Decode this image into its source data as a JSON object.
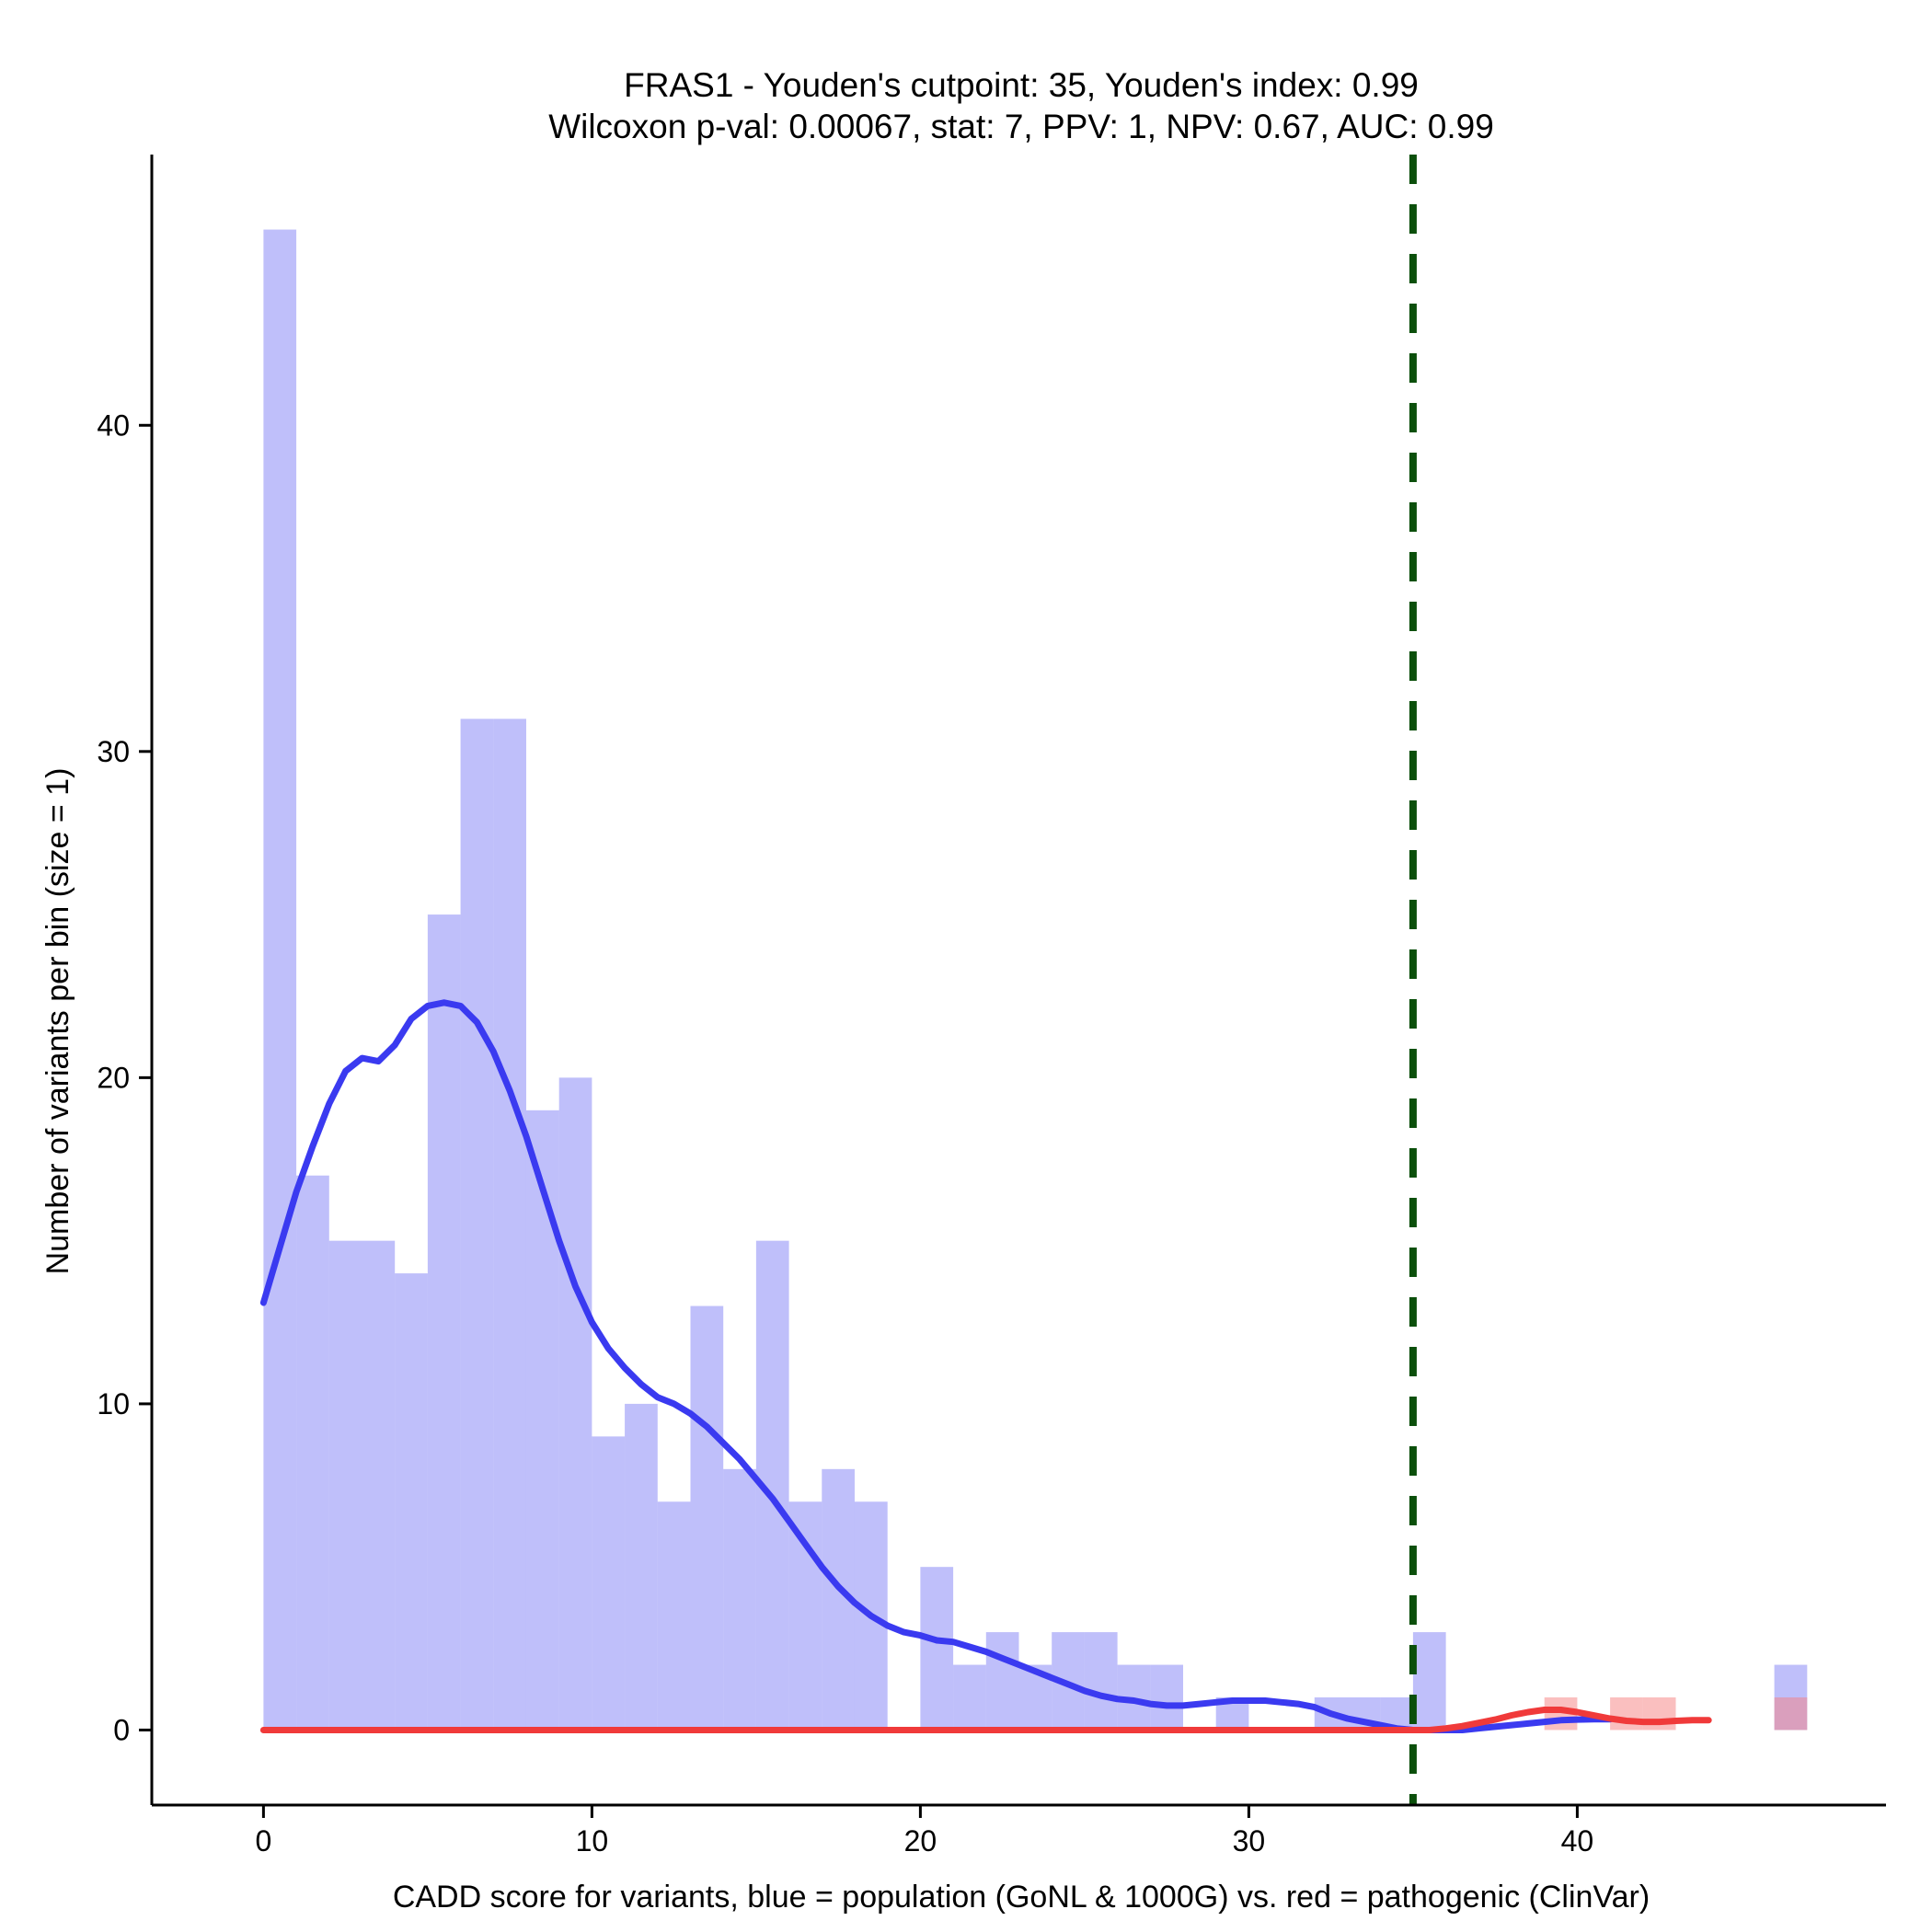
{
  "chart_data": {
    "type": "bar",
    "title": "FRAS1 - Youden's cutpoint: 35, Youden's index: 0.99",
    "subtitle": "Wilcoxon p-val: 0.00067, stat: 7, PPV: 1, NPV: 0.67, AUC: 0.99",
    "xlabel": "CADD score for variants, blue = population (GoNL & 1000G) vs. red = pathogenic (ClinVar)",
    "ylabel": "Number of variants per bin (size = 1)",
    "xlim": [
      -3.4,
      49.4
    ],
    "ylim": [
      -2.3,
      48.3
    ],
    "x_ticks": [
      0,
      10,
      20,
      30,
      40
    ],
    "y_ticks": [
      0,
      10,
      20,
      30,
      40
    ],
    "bin_size": 1,
    "grid": false,
    "legend": "none",
    "cutpoint": 35,
    "series": [
      {
        "kind": "histogram",
        "color": "#8080f5",
        "opacity": 0.5,
        "bins": [
          {
            "x0": 0,
            "count": 46
          },
          {
            "x0": 1,
            "count": 17
          },
          {
            "x0": 2,
            "count": 15
          },
          {
            "x0": 3,
            "count": 15
          },
          {
            "x0": 4,
            "count": 14
          },
          {
            "x0": 5,
            "count": 25
          },
          {
            "x0": 6,
            "count": 31
          },
          {
            "x0": 7,
            "count": 31
          },
          {
            "x0": 8,
            "count": 19
          },
          {
            "x0": 9,
            "count": 20
          },
          {
            "x0": 10,
            "count": 9
          },
          {
            "x0": 11,
            "count": 10
          },
          {
            "x0": 12,
            "count": 7
          },
          {
            "x0": 13,
            "count": 13
          },
          {
            "x0": 14,
            "count": 8
          },
          {
            "x0": 15,
            "count": 15
          },
          {
            "x0": 16,
            "count": 7
          },
          {
            "x0": 17,
            "count": 8
          },
          {
            "x0": 18,
            "count": 7
          },
          {
            "x0": 19,
            "count": 0
          },
          {
            "x0": 20,
            "count": 5
          },
          {
            "x0": 21,
            "count": 2
          },
          {
            "x0": 22,
            "count": 3
          },
          {
            "x0": 23,
            "count": 2
          },
          {
            "x0": 24,
            "count": 3
          },
          {
            "x0": 25,
            "count": 3
          },
          {
            "x0": 26,
            "count": 2
          },
          {
            "x0": 27,
            "count": 2
          },
          {
            "x0": 28,
            "count": 0
          },
          {
            "x0": 29,
            "count": 1
          },
          {
            "x0": 30,
            "count": 0
          },
          {
            "x0": 31,
            "count": 0
          },
          {
            "x0": 32,
            "count": 1
          },
          {
            "x0": 33,
            "count": 1
          },
          {
            "x0": 34,
            "count": 1
          },
          {
            "x0": 35,
            "count": 3
          },
          {
            "x0": 36,
            "count": 0
          },
          {
            "x0": 37,
            "count": 0
          },
          {
            "x0": 38,
            "count": 0
          },
          {
            "x0": 39,
            "count": 0
          },
          {
            "x0": 40,
            "count": 0
          },
          {
            "x0": 41,
            "count": 0
          },
          {
            "x0": 42,
            "count": 0
          },
          {
            "x0": 43,
            "count": 0
          },
          {
            "x0": 44,
            "count": 0
          },
          {
            "x0": 45,
            "count": 0
          },
          {
            "x0": 46,
            "count": 2
          }
        ]
      },
      {
        "kind": "histogram",
        "color": "#f58080",
        "opacity": 0.5,
        "bins": [
          {
            "x0": 39,
            "count": 1
          },
          {
            "x0": 41,
            "count": 1
          },
          {
            "x0": 42,
            "count": 1
          },
          {
            "x0": 46,
            "count": 1
          }
        ]
      },
      {
        "kind": "density",
        "color": "#3a3af0",
        "points": [
          [
            0,
            13.1
          ],
          [
            0.5,
            14.8
          ],
          [
            1,
            16.5
          ],
          [
            1.5,
            17.9
          ],
          [
            2,
            19.2
          ],
          [
            2.5,
            20.2
          ],
          [
            3,
            20.6
          ],
          [
            3.5,
            20.5
          ],
          [
            4,
            21.0
          ],
          [
            4.5,
            21.8
          ],
          [
            5,
            22.2
          ],
          [
            5.5,
            22.3
          ],
          [
            6,
            22.2
          ],
          [
            6.5,
            21.7
          ],
          [
            7,
            20.8
          ],
          [
            7.5,
            19.6
          ],
          [
            8,
            18.2
          ],
          [
            8.5,
            16.6
          ],
          [
            9,
            15.0
          ],
          [
            9.5,
            13.6
          ],
          [
            10,
            12.5
          ],
          [
            10.5,
            11.7
          ],
          [
            11,
            11.1
          ],
          [
            11.5,
            10.6
          ],
          [
            12,
            10.2
          ],
          [
            12.5,
            10.0
          ],
          [
            13,
            9.7
          ],
          [
            13.5,
            9.3
          ],
          [
            14,
            8.8
          ],
          [
            14.5,
            8.3
          ],
          [
            15,
            7.7
          ],
          [
            15.5,
            7.1
          ],
          [
            16,
            6.4
          ],
          [
            16.5,
            5.7
          ],
          [
            17,
            5.0
          ],
          [
            17.5,
            4.4
          ],
          [
            18,
            3.9
          ],
          [
            18.5,
            3.5
          ],
          [
            19,
            3.2
          ],
          [
            19.5,
            3.0
          ],
          [
            20,
            2.9
          ],
          [
            20.5,
            2.75
          ],
          [
            21,
            2.7
          ],
          [
            21.5,
            2.55
          ],
          [
            22,
            2.4
          ],
          [
            22.5,
            2.2
          ],
          [
            23,
            2.0
          ],
          [
            23.5,
            1.8
          ],
          [
            24,
            1.6
          ],
          [
            24.5,
            1.4
          ],
          [
            25,
            1.2
          ],
          [
            25.5,
            1.05
          ],
          [
            26,
            0.95
          ],
          [
            26.5,
            0.9
          ],
          [
            27,
            0.8
          ],
          [
            27.5,
            0.75
          ],
          [
            28,
            0.75
          ],
          [
            28.5,
            0.8
          ],
          [
            29,
            0.85
          ],
          [
            29.5,
            0.9
          ],
          [
            30,
            0.9
          ],
          [
            30.5,
            0.9
          ],
          [
            31,
            0.85
          ],
          [
            31.5,
            0.8
          ],
          [
            32,
            0.7
          ],
          [
            32.5,
            0.5
          ],
          [
            33,
            0.35
          ],
          [
            33.5,
            0.25
          ],
          [
            34,
            0.15
          ],
          [
            34.5,
            0.05
          ],
          [
            35,
            0.0
          ],
          [
            35.5,
            0.0
          ],
          [
            36,
            0.0
          ],
          [
            36.5,
            0.0
          ],
          [
            37,
            0.05
          ],
          [
            37.5,
            0.1
          ],
          [
            38,
            0.15
          ],
          [
            38.5,
            0.2
          ],
          [
            39,
            0.25
          ],
          [
            39.5,
            0.3
          ],
          [
            40,
            0.32
          ],
          [
            40.5,
            0.33
          ],
          [
            41,
            0.33
          ]
        ]
      },
      {
        "kind": "density",
        "color": "#f03a3a",
        "points": [
          [
            0,
            0
          ],
          [
            5,
            0
          ],
          [
            10,
            0
          ],
          [
            15,
            0
          ],
          [
            20,
            0
          ],
          [
            25,
            0
          ],
          [
            30,
            0
          ],
          [
            35.5,
            0
          ],
          [
            36,
            0.05
          ],
          [
            36.5,
            0.12
          ],
          [
            37,
            0.22
          ],
          [
            37.5,
            0.32
          ],
          [
            38,
            0.45
          ],
          [
            38.5,
            0.55
          ],
          [
            39,
            0.62
          ],
          [
            39.5,
            0.62
          ],
          [
            40,
            0.55
          ],
          [
            40.5,
            0.45
          ],
          [
            41,
            0.35
          ],
          [
            41.5,
            0.28
          ],
          [
            42,
            0.25
          ],
          [
            42.5,
            0.25
          ],
          [
            43,
            0.28
          ],
          [
            43.5,
            0.3
          ],
          [
            44,
            0.3
          ]
        ]
      }
    ]
  },
  "style": {
    "cutpoint_color": "#0b4f0b",
    "axis_color": "#000000"
  }
}
